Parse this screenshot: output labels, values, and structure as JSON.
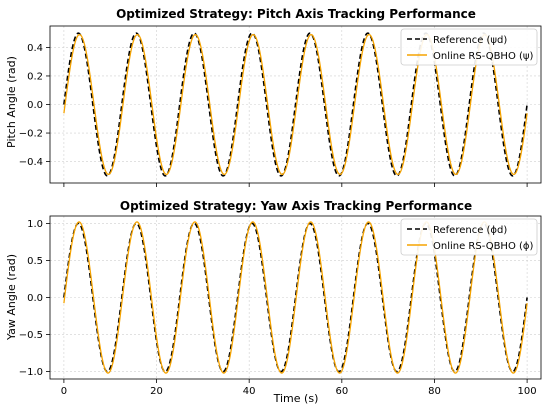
{
  "chart_data": [
    {
      "type": "line",
      "title": "Optimized Strategy: Pitch Axis Tracking Performance",
      "xlabel": "",
      "ylabel": "Pitch Angle (rad)",
      "xlim": [
        -3,
        103
      ],
      "ylim": [
        -0.55,
        0.55
      ],
      "xticks": [
        0,
        20,
        40,
        60,
        80,
        100
      ],
      "yticks": [
        -0.4,
        -0.2,
        0.0,
        0.2,
        0.4
      ],
      "ytick_labels": [
        "−0.4",
        "−0.2",
        "0.0",
        "0.2",
        "0.4"
      ],
      "show_x_tick_labels": false,
      "grid": true,
      "legend_position": "top-right",
      "series": [
        {
          "name": "Reference (ψd)",
          "amplitude": 0.5,
          "period": 12.5,
          "phase_shift": 0.0,
          "color": "#000000",
          "dashed": true,
          "width": 1.6
        },
        {
          "name": "Online RS-QBHO (ψ)",
          "amplitude": 0.49,
          "period": 12.5,
          "phase_shift": 0.25,
          "color": "#f5a300",
          "dashed": false,
          "width": 1.3
        }
      ],
      "x_range": [
        0,
        100
      ]
    },
    {
      "type": "line",
      "title": "Optimized Strategy: Yaw Axis Tracking Performance",
      "xlabel": "Time (s)",
      "ylabel": "Yaw Angle (rad)",
      "xlim": [
        -3,
        103
      ],
      "ylim": [
        -1.1,
        1.1
      ],
      "xticks": [
        0,
        20,
        40,
        60,
        80,
        100
      ],
      "yticks": [
        -1.0,
        -0.5,
        0.0,
        0.5,
        1.0
      ],
      "ytick_labels": [
        "−1.0",
        "−0.5",
        "0.0",
        "0.5",
        "1.0"
      ],
      "show_x_tick_labels": true,
      "grid": true,
      "legend_position": "top-right",
      "series": [
        {
          "name": "Reference (ϕd)",
          "amplitude": 1.0,
          "period": 12.5,
          "phase_shift": 0.0,
          "color": "#000000",
          "dashed": true,
          "width": 1.6
        },
        {
          "name": "Online RS-QBHO (ϕ)",
          "amplitude": 1.02,
          "period": 12.5,
          "phase_shift": 0.15,
          "color": "#f5a300",
          "dashed": false,
          "width": 1.3
        }
      ],
      "x_range": [
        0,
        100
      ]
    }
  ]
}
